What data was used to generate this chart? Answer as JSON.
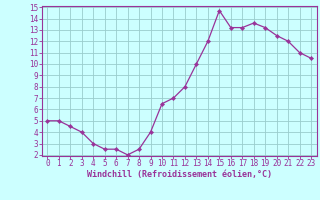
{
  "x": [
    0,
    1,
    2,
    3,
    4,
    5,
    6,
    7,
    8,
    9,
    10,
    11,
    12,
    13,
    14,
    15,
    16,
    17,
    18,
    19,
    20,
    21,
    22,
    23
  ],
  "y": [
    5.0,
    5.0,
    4.5,
    4.0,
    3.0,
    2.5,
    2.5,
    2.0,
    2.5,
    4.0,
    6.5,
    7.0,
    8.0,
    10.0,
    12.0,
    14.7,
    13.2,
    13.2,
    13.6,
    13.2,
    12.5,
    12.0,
    11.0,
    10.5
  ],
  "line_color": "#993399",
  "marker_color": "#993399",
  "bg_color": "#ccffff",
  "grid_color": "#99cccc",
  "xlabel": "Windchill (Refroidissement éolien,°C)",
  "xlabel_color": "#993399",
  "tick_color": "#993399",
  "spine_color": "#993399",
  "ylim": [
    2,
    15
  ],
  "xlim": [
    -0.5,
    23.5
  ],
  "yticks": [
    2,
    3,
    4,
    5,
    6,
    7,
    8,
    9,
    10,
    11,
    12,
    13,
    14,
    15
  ],
  "xticks": [
    0,
    1,
    2,
    3,
    4,
    5,
    6,
    7,
    8,
    9,
    10,
    11,
    12,
    13,
    14,
    15,
    16,
    17,
    18,
    19,
    20,
    21,
    22,
    23
  ],
  "xtick_labels": [
    "0",
    "1",
    "2",
    "3",
    "4",
    "5",
    "6",
    "7",
    "8",
    "9",
    "10",
    "11",
    "12",
    "13",
    "14",
    "15",
    "16",
    "17",
    "18",
    "19",
    "20",
    "21",
    "22",
    "23"
  ],
  "ytick_labels": [
    "2",
    "3",
    "4",
    "5",
    "6",
    "7",
    "8",
    "9",
    "10",
    "11",
    "12",
    "13",
    "14",
    "15"
  ],
  "tick_fontsize": 5.5,
  "xlabel_fontsize": 6.0,
  "font_family": "monospace"
}
